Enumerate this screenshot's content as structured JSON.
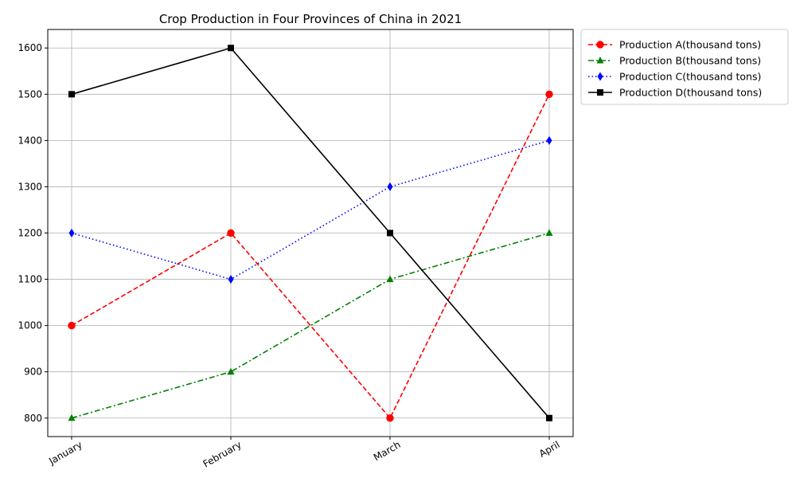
{
  "chart_data": {
    "type": "line",
    "title": "Crop Production in Four Provinces of China in 2021",
    "xlabel": "",
    "ylabel": "",
    "categories": [
      "January",
      "February",
      "March",
      "April"
    ],
    "ylim": [
      760,
      1640
    ],
    "yticks": [
      800,
      900,
      1000,
      1100,
      1200,
      1300,
      1400,
      1500,
      1600
    ],
    "grid": true,
    "legend_position": "outside upper right",
    "series": [
      {
        "name": "Production A(thousand tons)",
        "values": [
          1000,
          1200,
          800,
          1500
        ],
        "color": "#ff0000",
        "linestyle": "dashed",
        "marker": "circle"
      },
      {
        "name": "Production B(thousand tons)",
        "values": [
          800,
          900,
          1100,
          1200
        ],
        "color": "#008000",
        "linestyle": "dashdot",
        "marker": "triangle"
      },
      {
        "name": "Production C(thousand tons)",
        "values": [
          1200,
          1100,
          1300,
          1400
        ],
        "color": "#0000ff",
        "linestyle": "dotted",
        "marker": "diamond"
      },
      {
        "name": "Production D(thousand tons)",
        "values": [
          1500,
          1600,
          1200,
          800
        ],
        "color": "#000000",
        "linestyle": "solid",
        "marker": "square"
      }
    ]
  }
}
